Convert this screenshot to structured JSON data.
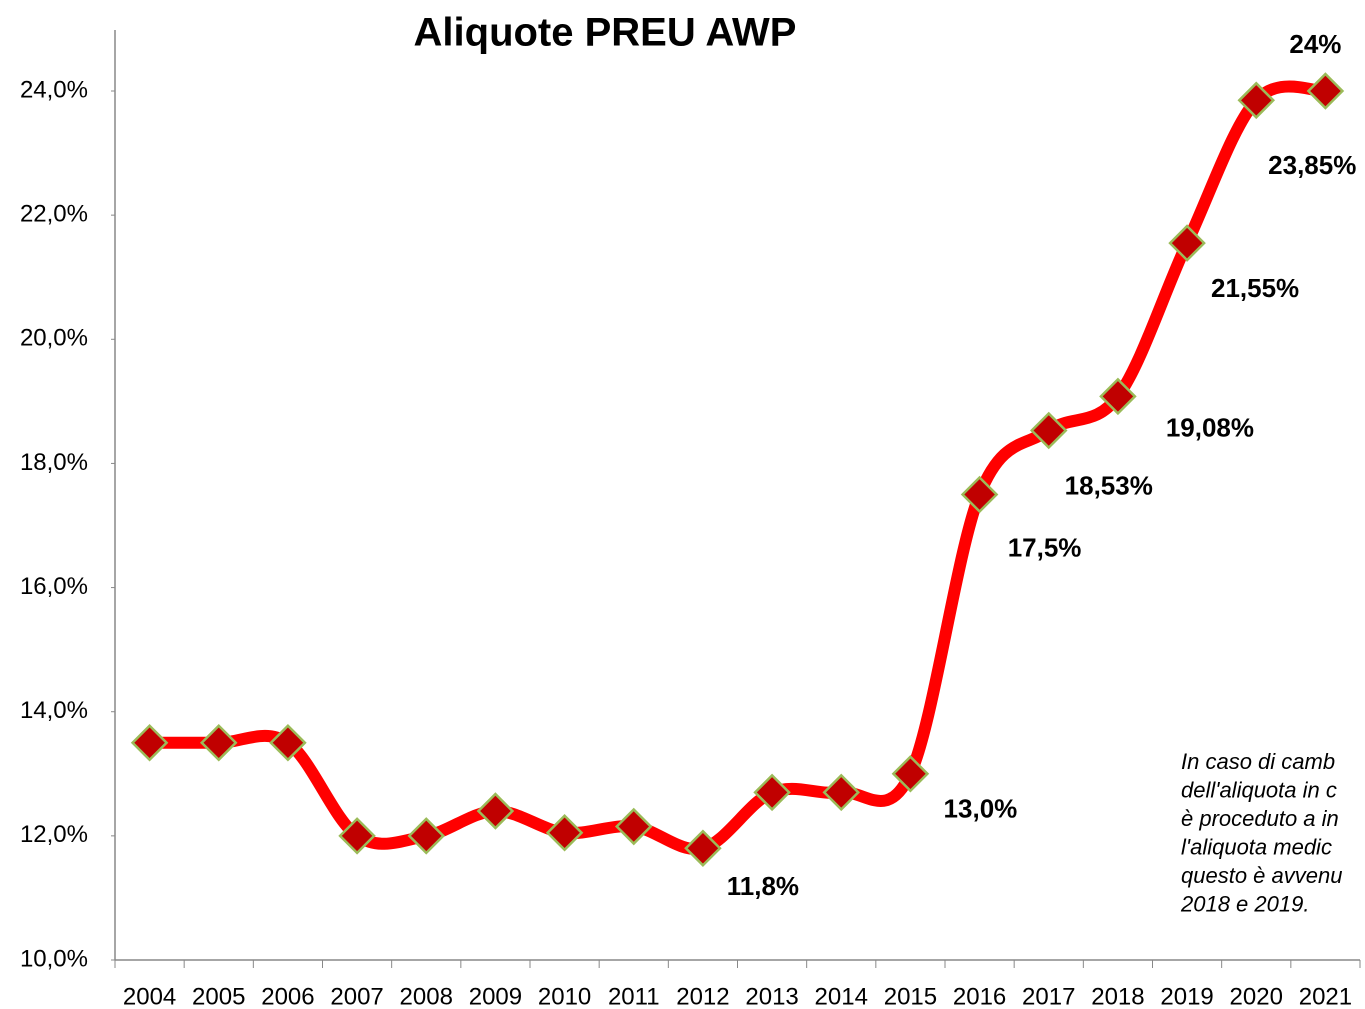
{
  "chart_data": {
    "type": "line",
    "title": "Aliquote PREU AWP",
    "categories": [
      "2004",
      "2005",
      "2006",
      "2007",
      "2008",
      "2009",
      "2010",
      "2011",
      "2012",
      "2013",
      "2014",
      "2015",
      "2016",
      "2017",
      "2018",
      "2019",
      "2020",
      "2021"
    ],
    "series": [
      {
        "name": "Aliquote PREU AWP",
        "color": "#ff0000",
        "marker_color": "#c00000",
        "marker_edge": "#9bbb59",
        "values": [
          13.5,
          13.5,
          13.5,
          12.0,
          12.0,
          12.4,
          12.05,
          12.15,
          11.8,
          12.7,
          12.7,
          13.0,
          17.5,
          18.53,
          19.08,
          21.55,
          23.85,
          24
        ],
        "value_labels": [
          null,
          null,
          null,
          null,
          null,
          null,
          null,
          null,
          "11,8%",
          null,
          null,
          "13,0%",
          "17,5%",
          "18,53%",
          "19,08%",
          "21,55%",
          "23,85%",
          "24%"
        ]
      }
    ],
    "ylim": [
      10,
      24
    ],
    "yticks": [
      {
        "value": 10,
        "label": "10,0%"
      },
      {
        "value": 12,
        "label": "12,0%"
      },
      {
        "value": 14,
        "label": "14,0%"
      },
      {
        "value": 16,
        "label": "16,0%"
      },
      {
        "value": 18,
        "label": "18,0%"
      },
      {
        "value": 20,
        "label": "20,0%"
      },
      {
        "value": 22,
        "label": "22,0%"
      },
      {
        "value": 24,
        "label": "24,0%"
      }
    ],
    "grid": false,
    "annotation": [
      "In caso di camb",
      "dell'aliquota in c",
      "è proceduto a in",
      "l'aliquota medic",
      "questo è avvenu",
      "2018 e 2019."
    ]
  }
}
